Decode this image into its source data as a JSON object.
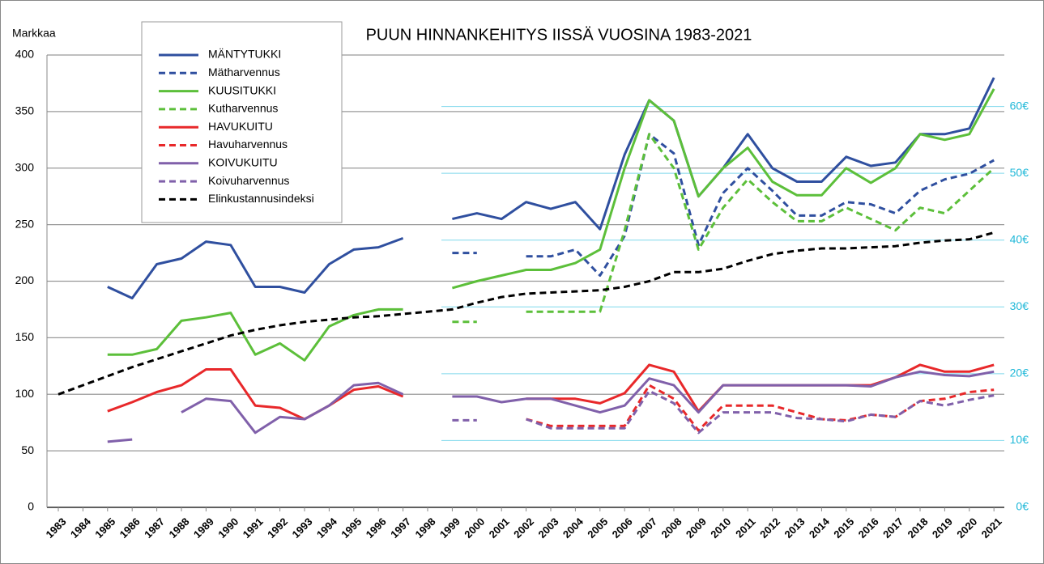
{
  "chart_data": {
    "type": "line",
    "title": "PUUN HINNANKEHITYS IISSÄ VUOSINA 1983-2021",
    "y_label": "Markkaa",
    "categories": [
      "1983",
      "1984",
      "1985",
      "1986",
      "1987",
      "1988",
      "1989",
      "1990",
      "1991",
      "1992",
      "1993",
      "1994",
      "1995",
      "1996",
      "1997",
      "1998",
      "1999",
      "2000",
      "2001",
      "2002",
      "2003",
      "2004",
      "2005",
      "2006",
      "2007",
      "2008",
      "2009",
      "2010",
      "2011",
      "2012",
      "2013",
      "2014",
      "2015",
      "2016",
      "2017",
      "2018",
      "2019",
      "2020",
      "2021"
    ],
    "ylim": [
      0,
      400
    ],
    "yticks": [
      0,
      50,
      100,
      150,
      200,
      250,
      300,
      350,
      400
    ],
    "y2lim": [
      0,
      67.7
    ],
    "y2ticks": [
      {
        "value": 0,
        "label": "0€"
      },
      {
        "value": 10,
        "label": "10€"
      },
      {
        "value": 20,
        "label": "20€"
      },
      {
        "value": 30,
        "label": "30€"
      },
      {
        "value": 40,
        "label": "40€"
      },
      {
        "value": 50,
        "label": "50€"
      },
      {
        "value": 60,
        "label": "60€"
      }
    ],
    "grid": true,
    "legend": "upper left",
    "series": [
      {
        "name": "MÄNTYTUKKI",
        "color": "#2f4f9f",
        "dashed": false,
        "values": [
          null,
          null,
          195,
          185,
          215,
          220,
          235,
          232,
          195,
          195,
          190,
          215,
          228,
          230,
          238,
          null,
          255,
          260,
          255,
          270,
          264,
          270,
          246,
          312,
          360,
          342,
          275,
          300,
          330,
          300,
          288,
          288,
          310,
          302,
          305,
          330,
          330,
          335,
          380
        ]
      },
      {
        "name": "Mätharvennus",
        "color": "#2f4f9f",
        "dashed": true,
        "values": [
          null,
          null,
          null,
          null,
          null,
          null,
          null,
          null,
          null,
          null,
          null,
          null,
          null,
          null,
          null,
          null,
          225,
          225,
          null,
          222,
          222,
          228,
          205,
          240,
          330,
          313,
          232,
          278,
          300,
          280,
          258,
          258,
          270,
          268,
          260,
          280,
          290,
          295,
          307
        ]
      },
      {
        "name": "KUUSITUKKI",
        "color": "#5cbf3a",
        "dashed": false,
        "values": [
          null,
          null,
          135,
          135,
          140,
          165,
          168,
          172,
          135,
          145,
          130,
          160,
          170,
          175,
          175,
          null,
          194,
          200,
          205,
          210,
          210,
          216,
          228,
          300,
          360,
          342,
          275,
          300,
          318,
          288,
          276,
          276,
          300,
          287,
          300,
          330,
          325,
          330,
          370
        ]
      },
      {
        "name": "Kutharvennus",
        "color": "#5cbf3a",
        "dashed": true,
        "values": [
          null,
          null,
          null,
          null,
          null,
          null,
          null,
          null,
          null,
          null,
          null,
          null,
          null,
          null,
          null,
          null,
          164,
          164,
          null,
          173,
          173,
          173,
          173,
          245,
          330,
          300,
          228,
          265,
          290,
          270,
          253,
          253,
          265,
          255,
          245,
          265,
          260,
          280,
          300
        ]
      },
      {
        "name": "HAVUKUITU",
        "color": "#e8282a",
        "dashed": false,
        "values": [
          null,
          null,
          85,
          93,
          102,
          108,
          122,
          122,
          90,
          88,
          78,
          90,
          104,
          107,
          98,
          null,
          null,
          null,
          null,
          96,
          96,
          96,
          92,
          101,
          126,
          120,
          85,
          108,
          108,
          108,
          108,
          108,
          108,
          108,
          115,
          126,
          120,
          120,
          126
        ]
      },
      {
        "name": "Havuharvennus",
        "color": "#e8282a",
        "dashed": true,
        "values": [
          null,
          null,
          null,
          null,
          null,
          null,
          null,
          null,
          null,
          null,
          null,
          null,
          null,
          null,
          null,
          null,
          null,
          null,
          null,
          78,
          72,
          72,
          72,
          72,
          108,
          96,
          68,
          90,
          90,
          90,
          84,
          78,
          77,
          82,
          80,
          94,
          96,
          102,
          104
        ]
      },
      {
        "name": "KOIVUKUITU",
        "color": "#8060aa",
        "dashed": false,
        "values": [
          null,
          null,
          58,
          60,
          null,
          84,
          96,
          94,
          66,
          80,
          78,
          90,
          108,
          110,
          100,
          null,
          98,
          98,
          93,
          96,
          96,
          90,
          84,
          90,
          114,
          108,
          84,
          108,
          108,
          108,
          108,
          108,
          108,
          107,
          115,
          120,
          117,
          116,
          120
        ]
      },
      {
        "name": "Koivuharvennus",
        "color": "#8060aa",
        "dashed": true,
        "values": [
          null,
          null,
          null,
          null,
          null,
          null,
          null,
          null,
          null,
          null,
          null,
          null,
          null,
          null,
          null,
          null,
          77,
          77,
          null,
          78,
          70,
          70,
          70,
          70,
          103,
          92,
          66,
          84,
          84,
          84,
          79,
          78,
          76,
          82,
          80,
          94,
          90,
          95,
          99
        ]
      },
      {
        "name": "Elinkustannusindeksi",
        "color": "#000000",
        "dashed": true,
        "values": [
          100,
          108,
          116,
          124,
          131,
          138,
          145,
          152,
          157,
          161,
          164,
          166,
          168,
          169,
          171,
          173,
          175,
          181,
          186,
          189,
          190,
          191,
          192,
          195,
          200,
          208,
          208,
          211,
          218,
          224,
          227,
          229,
          229,
          230,
          231,
          234,
          236,
          237,
          243
        ]
      }
    ]
  }
}
